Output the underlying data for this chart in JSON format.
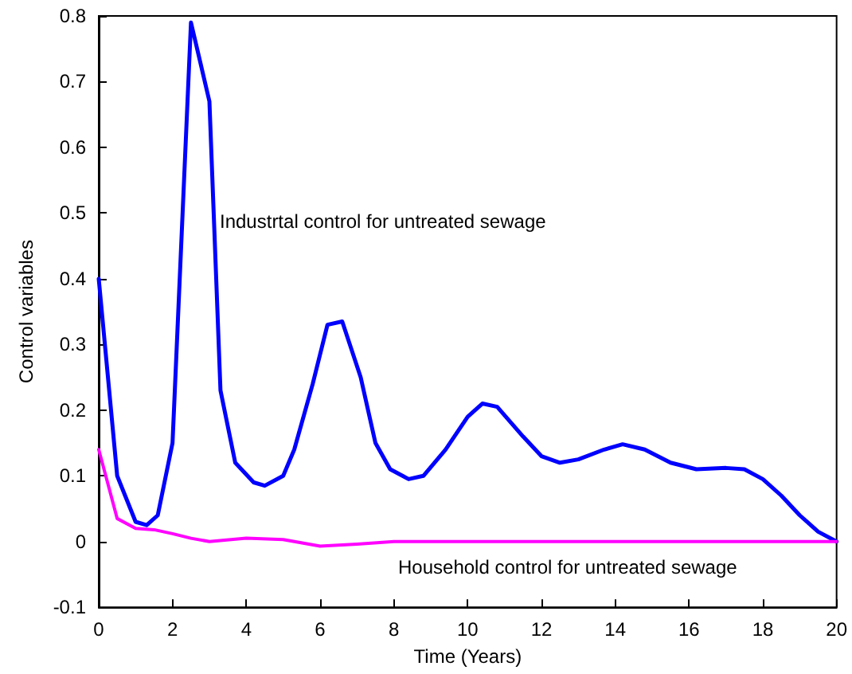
{
  "chart_data": {
    "type": "line",
    "xlabel": "Time (Years)",
    "ylabel": "Control variables",
    "xlim": [
      0,
      20
    ],
    "xticks": [
      0,
      2,
      4,
      6,
      8,
      10,
      12,
      14,
      16,
      18,
      20
    ],
    "ylim": [
      -0.1,
      0.8
    ],
    "yticks": [
      -0.1,
      0,
      0.1,
      0.2,
      0.3,
      0.4,
      0.5,
      0.6,
      0.7,
      0.8
    ],
    "grid": false,
    "marker": "none",
    "line_style": "solid",
    "series": [
      {
        "color": "#0000ff",
        "x": [
          0,
          0.5,
          1,
          1.3,
          1.6,
          2,
          2.5,
          3,
          3.3,
          3.7,
          4.2,
          4.5,
          5,
          5.3,
          5.8,
          6.2,
          6.6,
          7.1,
          7.5,
          7.9,
          8.4,
          8.8,
          9.4,
          10,
          10.4,
          10.8,
          11.5,
          12,
          12.5,
          13,
          13.7,
          14.2,
          14.8,
          15.5,
          16.2,
          17,
          17.5,
          18,
          18.5,
          19,
          19.5,
          20
        ],
        "values": [
          0.4,
          0.1,
          0.03,
          0.025,
          0.04,
          0.15,
          0.79,
          0.67,
          0.23,
          0.12,
          0.09,
          0.085,
          0.1,
          0.14,
          0.24,
          0.33,
          0.335,
          0.25,
          0.15,
          0.11,
          0.095,
          0.1,
          0.14,
          0.19,
          0.21,
          0.205,
          0.16,
          0.13,
          0.12,
          0.125,
          0.14,
          0.148,
          0.14,
          0.12,
          0.11,
          0.112,
          0.11,
          0.095,
          0.07,
          0.04,
          0.015,
          0
        ]
      },
      {
        "color": "#ff00ff",
        "x": [
          0,
          0.5,
          1,
          1.5,
          2,
          2.5,
          3,
          4,
          5,
          6,
          7,
          8,
          10,
          20
        ],
        "values": [
          0.14,
          0.035,
          0.02,
          0.018,
          0.012,
          0.005,
          0,
          0.005,
          0.003,
          -0.007,
          -0.004,
          0,
          0,
          0
        ]
      }
    ],
    "annotations": [
      "Industrtal control for untreated sewage",
      "Household control for untreated sewage"
    ]
  }
}
